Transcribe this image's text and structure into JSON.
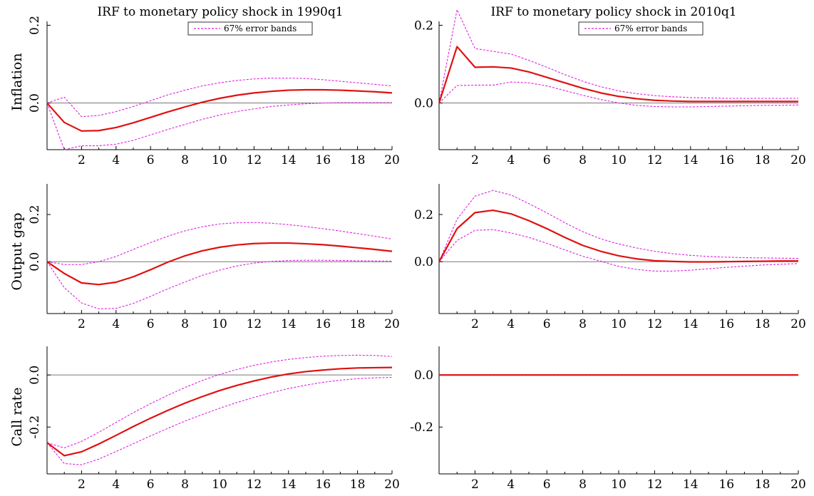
{
  "figure": {
    "titles": [
      "IRF to monetary policy shock in 1990q1",
      "IRF to monetary policy shock in 2010q1"
    ],
    "row_labels": [
      "Inflation",
      "Output gap",
      "Call rate"
    ],
    "legend": "67% error bands"
  },
  "colors": {
    "irf": "#e01010",
    "bands": "#e020e0",
    "zero_line": "#777777",
    "axis": "#000000"
  },
  "chart_data": [
    {
      "id": "inflation-1990",
      "type": "line",
      "title": "IRF to monetary policy shock in 1990q1",
      "ylabel": "Inflation",
      "x": [
        0,
        1,
        2,
        3,
        4,
        5,
        6,
        7,
        8,
        9,
        10,
        11,
        12,
        13,
        14,
        15,
        16,
        17,
        18,
        19,
        20
      ],
      "xticks": [
        2,
        4,
        6,
        8,
        10,
        12,
        14,
        16,
        18,
        20
      ],
      "xlim": [
        0,
        20
      ],
      "ylim": [
        -0.12,
        0.21
      ],
      "yticks": [
        0.0,
        0.2
      ],
      "ytick_labels": [
        "0.0",
        "0.2"
      ],
      "series": [
        {
          "role": "irf",
          "values": [
            0,
            -0.05,
            -0.072,
            -0.071,
            -0.063,
            -0.051,
            -0.037,
            -0.023,
            -0.01,
            0.002,
            0.012,
            0.02,
            0.026,
            0.03,
            0.033,
            0.034,
            0.034,
            0.033,
            0.031,
            0.029,
            0.026
          ]
        },
        {
          "role": "upper",
          "values": [
            0,
            0.015,
            -0.035,
            -0.032,
            -0.022,
            -0.009,
            0.006,
            0.021,
            0.033,
            0.044,
            0.052,
            0.058,
            0.062,
            0.064,
            0.064,
            0.063,
            0.06,
            0.056,
            0.052,
            0.048,
            0.044
          ]
        },
        {
          "role": "lower",
          "values": [
            0,
            -0.12,
            -0.11,
            -0.11,
            -0.106,
            -0.096,
            -0.082,
            -0.068,
            -0.055,
            -0.042,
            -0.031,
            -0.022,
            -0.015,
            -0.009,
            -0.005,
            -0.002,
            0,
            0.001,
            0.001,
            0.001,
            0.001
          ]
        }
      ]
    },
    {
      "id": "inflation-2010",
      "type": "line",
      "title": "IRF to monetary policy shock in 2010q1",
      "x": [
        0,
        1,
        2,
        3,
        4,
        5,
        6,
        7,
        8,
        9,
        10,
        11,
        12,
        13,
        14,
        15,
        16,
        17,
        18,
        19,
        20
      ],
      "xticks": [
        2,
        4,
        6,
        8,
        10,
        12,
        14,
        16,
        18,
        20
      ],
      "xlim": [
        0,
        20
      ],
      "ylim": [
        -0.12,
        0.21
      ],
      "yticks": [
        0.0,
        0.2
      ],
      "ytick_labels": [
        "0.0",
        "0.2"
      ],
      "series": [
        {
          "role": "irf",
          "values": [
            0,
            0.145,
            0.092,
            0.093,
            0.09,
            0.08,
            0.066,
            0.052,
            0.038,
            0.026,
            0.017,
            0.011,
            0.007,
            0.005,
            0.004,
            0.004,
            0.004,
            0.004,
            0.004,
            0.004,
            0.004
          ]
        },
        {
          "role": "upper",
          "values": [
            0,
            0.24,
            0.14,
            0.133,
            0.126,
            0.11,
            0.092,
            0.073,
            0.056,
            0.042,
            0.031,
            0.024,
            0.019,
            0.016,
            0.014,
            0.013,
            0.012,
            0.012,
            0.012,
            0.012,
            0.012
          ]
        },
        {
          "role": "lower",
          "values": [
            0,
            0.045,
            0.046,
            0.046,
            0.054,
            0.052,
            0.044,
            0.032,
            0.02,
            0.009,
            0.0,
            -0.006,
            -0.009,
            -0.01,
            -0.01,
            -0.009,
            -0.008,
            -0.007,
            -0.006,
            -0.006,
            -0.005
          ]
        }
      ]
    },
    {
      "id": "output-1990",
      "type": "line",
      "ylabel": "Output gap",
      "x": [
        0,
        1,
        2,
        3,
        4,
        5,
        6,
        7,
        8,
        9,
        10,
        11,
        12,
        13,
        14,
        15,
        16,
        17,
        18,
        19,
        20
      ],
      "xticks": [
        2,
        4,
        6,
        8,
        10,
        12,
        14,
        16,
        18,
        20
      ],
      "xlim": [
        0,
        20
      ],
      "ylim": [
        -0.22,
        0.33
      ],
      "yticks": [
        0.0,
        0.2
      ],
      "ytick_labels": [
        "0.0",
        "0.2"
      ],
      "series": [
        {
          "role": "irf",
          "values": [
            0,
            -0.05,
            -0.09,
            -0.097,
            -0.087,
            -0.064,
            -0.034,
            -0.002,
            0.025,
            0.046,
            0.061,
            0.071,
            0.077,
            0.079,
            0.079,
            0.076,
            0.072,
            0.066,
            0.059,
            0.052,
            0.044
          ]
        },
        {
          "role": "upper",
          "values": [
            0,
            -0.012,
            -0.012,
            0.0,
            0.022,
            0.052,
            0.081,
            0.108,
            0.131,
            0.148,
            0.16,
            0.165,
            0.166,
            0.163,
            0.157,
            0.149,
            0.14,
            0.13,
            0.119,
            0.108,
            0.096
          ]
        },
        {
          "role": "lower",
          "values": [
            0,
            -0.11,
            -0.175,
            -0.2,
            -0.198,
            -0.177,
            -0.147,
            -0.115,
            -0.086,
            -0.058,
            -0.036,
            -0.018,
            -0.006,
            0.001,
            0.005,
            0.006,
            0.006,
            0.005,
            0.004,
            0.003,
            0.002
          ]
        }
      ]
    },
    {
      "id": "output-2010",
      "type": "line",
      "x": [
        0,
        1,
        2,
        3,
        4,
        5,
        6,
        7,
        8,
        9,
        10,
        11,
        12,
        13,
        14,
        15,
        16,
        17,
        18,
        19,
        20
      ],
      "xticks": [
        2,
        4,
        6,
        8,
        10,
        12,
        14,
        16,
        18,
        20
      ],
      "xlim": [
        0,
        20
      ],
      "ylim": [
        -0.22,
        0.33
      ],
      "yticks": [
        0.0,
        0.2
      ],
      "ytick_labels": [
        "0.0",
        "0.2"
      ],
      "series": [
        {
          "role": "irf",
          "values": [
            0,
            0.14,
            0.208,
            0.218,
            0.203,
            0.174,
            0.14,
            0.103,
            0.069,
            0.044,
            0.025,
            0.012,
            0.004,
            0.001,
            -0.001,
            -0.001,
            0.0,
            0.001,
            0.002,
            0.003,
            0.003
          ]
        },
        {
          "role": "upper",
          "values": [
            0,
            0.18,
            0.278,
            0.302,
            0.283,
            0.246,
            0.207,
            0.165,
            0.127,
            0.097,
            0.075,
            0.058,
            0.044,
            0.034,
            0.027,
            0.022,
            0.019,
            0.017,
            0.016,
            0.015,
            0.014
          ]
        },
        {
          "role": "lower",
          "values": [
            0,
            0.09,
            0.133,
            0.136,
            0.122,
            0.103,
            0.078,
            0.05,
            0.023,
            0.002,
            -0.02,
            -0.033,
            -0.04,
            -0.04,
            -0.036,
            -0.03,
            -0.024,
            -0.019,
            -0.014,
            -0.011,
            -0.008
          ]
        }
      ]
    },
    {
      "id": "callrate-1990",
      "type": "line",
      "ylabel": "Call rate",
      "x": [
        0,
        1,
        2,
        3,
        4,
        5,
        6,
        7,
        8,
        9,
        10,
        11,
        12,
        13,
        14,
        15,
        16,
        17,
        18,
        19,
        20
      ],
      "xticks": [
        2,
        4,
        6,
        8,
        10,
        12,
        14,
        16,
        18,
        20
      ],
      "xlim": [
        0,
        20
      ],
      "ylim": [
        -0.38,
        0.11
      ],
      "yticks": [
        0.0,
        -0.2
      ],
      "ytick_labels": [
        "0.0",
        "-0.2"
      ],
      "series": [
        {
          "role": "irf",
          "values": [
            -0.26,
            -0.31,
            -0.295,
            -0.265,
            -0.232,
            -0.198,
            -0.166,
            -0.136,
            -0.108,
            -0.083,
            -0.06,
            -0.04,
            -0.023,
            -0.008,
            0.004,
            0.013,
            0.019,
            0.024,
            0.027,
            0.028,
            0.029
          ]
        },
        {
          "role": "upper",
          "values": [
            -0.26,
            -0.28,
            -0.255,
            -0.22,
            -0.182,
            -0.145,
            -0.11,
            -0.078,
            -0.048,
            -0.021,
            0.002,
            0.021,
            0.037,
            0.05,
            0.06,
            0.067,
            0.072,
            0.075,
            0.076,
            0.075,
            0.071
          ]
        },
        {
          "role": "lower",
          "values": [
            -0.26,
            -0.34,
            -0.345,
            -0.323,
            -0.294,
            -0.264,
            -0.234,
            -0.205,
            -0.177,
            -0.152,
            -0.128,
            -0.106,
            -0.086,
            -0.068,
            -0.052,
            -0.039,
            -0.028,
            -0.02,
            -0.014,
            -0.011,
            -0.009
          ]
        }
      ]
    },
    {
      "id": "callrate-2010",
      "type": "line",
      "x": [
        0,
        1,
        2,
        3,
        4,
        5,
        6,
        7,
        8,
        9,
        10,
        11,
        12,
        13,
        14,
        15,
        16,
        17,
        18,
        19,
        20
      ],
      "xticks": [
        2,
        4,
        6,
        8,
        10,
        12,
        14,
        16,
        18,
        20
      ],
      "xlim": [
        0,
        20
      ],
      "ylim": [
        -0.38,
        0.11
      ],
      "yticks": [
        0.0,
        -0.2
      ],
      "ytick_labels": [
        "0.0",
        "-0.2"
      ],
      "series": [
        {
          "role": "irf",
          "values": [
            0,
            0,
            0,
            0,
            0,
            0,
            0,
            0,
            0,
            0,
            0,
            0,
            0,
            0,
            0,
            0,
            0,
            0,
            0,
            0,
            0
          ]
        },
        {
          "role": "upper",
          "values": [
            0.001,
            0.001,
            0.001,
            0.001,
            0.001,
            0.001,
            0.001,
            0.001,
            0.001,
            0.001,
            0.001,
            0.001,
            0.001,
            0.001,
            0.001,
            0.001,
            0.001,
            0.001,
            0.001,
            0.001,
            0.001
          ]
        },
        {
          "role": "lower",
          "values": [
            -0.001,
            -0.001,
            -0.001,
            -0.001,
            -0.001,
            -0.001,
            -0.001,
            -0.001,
            -0.001,
            -0.001,
            -0.001,
            -0.001,
            -0.001,
            -0.001,
            -0.001,
            -0.001,
            -0.001,
            -0.001,
            -0.001,
            -0.001,
            -0.001
          ]
        }
      ]
    }
  ]
}
